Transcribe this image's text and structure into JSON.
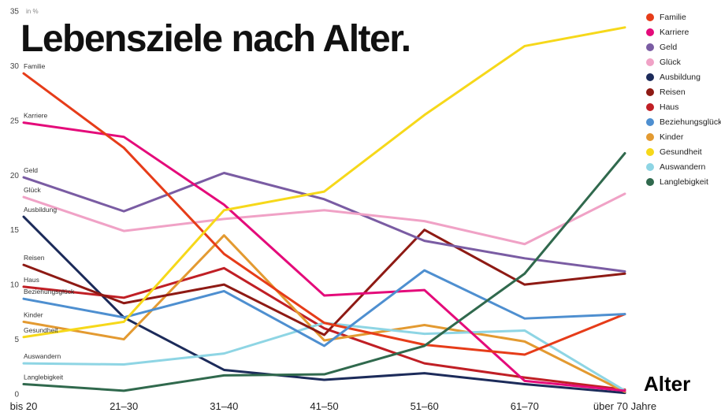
{
  "title": "Lebensziele nach Alter.",
  "y_axis_note": "in %",
  "x_axis_label": "Alter",
  "chart_data": {
    "type": "line",
    "title": "Lebensziele nach Alter.",
    "xlabel": "Alter",
    "ylabel": "in %",
    "categories": [
      "bis 20",
      "21–30",
      "31–40",
      "41–50",
      "51–60",
      "61–70",
      "über 70 Jahre"
    ],
    "ylim": [
      0,
      35
    ],
    "yticks": [
      0,
      5,
      10,
      15,
      20,
      25,
      30,
      35
    ],
    "grid": false,
    "legend_position": "top-right",
    "series": [
      {
        "name": "Familie",
        "color": "#e63c19",
        "values": [
          29.3,
          22.5,
          12.8,
          6.5,
          4.5,
          3.6,
          7.3
        ]
      },
      {
        "name": "Karriere",
        "color": "#e40b7a",
        "values": [
          24.8,
          23.5,
          17.3,
          9.0,
          9.5,
          1.2,
          0.3
        ]
      },
      {
        "name": "Geld",
        "color": "#7a5ca3",
        "values": [
          19.8,
          16.7,
          20.2,
          17.8,
          14.0,
          12.4,
          11.2
        ]
      },
      {
        "name": "Glück",
        "color": "#f0a2c6",
        "values": [
          18.0,
          14.9,
          16.0,
          16.8,
          15.8,
          13.7,
          18.3
        ]
      },
      {
        "name": "Ausbildung",
        "color": "#1c2b5a",
        "values": [
          16.2,
          7.0,
          2.2,
          1.3,
          1.9,
          0.9,
          0.1
        ]
      },
      {
        "name": "Reisen",
        "color": "#8e1a14",
        "values": [
          11.8,
          8.3,
          10.0,
          5.4,
          15.0,
          10.0,
          11.0
        ]
      },
      {
        "name": "Haus",
        "color": "#c01f25",
        "values": [
          9.8,
          8.8,
          11.5,
          6.0,
          2.8,
          1.5,
          0.4
        ]
      },
      {
        "name": "Beziehungsglück",
        "color": "#4e8fd0",
        "values": [
          8.7,
          7.0,
          9.4,
          4.4,
          11.3,
          6.9,
          7.3
        ]
      },
      {
        "name": "Kinder",
        "color": "#e39a31",
        "values": [
          6.6,
          5.0,
          14.5,
          4.9,
          6.3,
          4.8,
          0.2
        ]
      },
      {
        "name": "Gesundheit",
        "color": "#f6d81a",
        "values": [
          5.2,
          6.6,
          16.8,
          18.5,
          25.5,
          31.8,
          33.5
        ]
      },
      {
        "name": "Auswandern",
        "color": "#8ed5e4",
        "values": [
          2.8,
          2.7,
          3.7,
          6.5,
          5.5,
          5.8,
          0.3
        ]
      },
      {
        "name": "Langlebigkeit",
        "color": "#30694d",
        "values": [
          0.9,
          0.3,
          1.7,
          1.8,
          4.4,
          11.0,
          22.0
        ]
      }
    ]
  }
}
